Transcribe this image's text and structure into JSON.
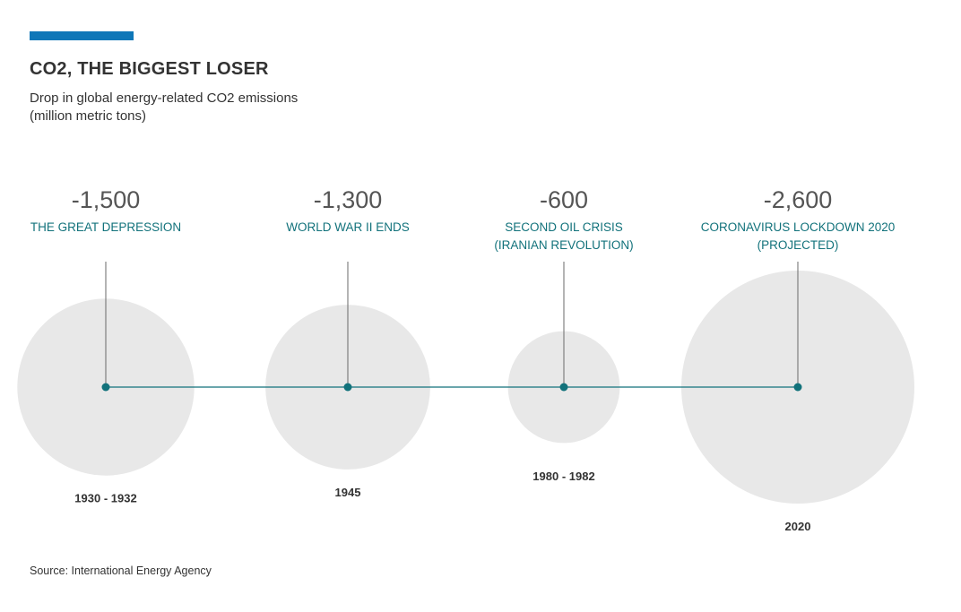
{
  "header": {
    "title": "CO2, THE BIGGEST LOSER",
    "subtitle_line1": "Drop in global energy-related CO2 emissions",
    "subtitle_line2": "(million metric tons)"
  },
  "footer": {
    "source": "Source: International Energy Agency"
  },
  "colors": {
    "accent": "#0f77b8",
    "teal": "#12727b",
    "bubble": "#e8e8e8",
    "stem": "#6a6a6a"
  },
  "chart_data": {
    "type": "bubble-timeline",
    "unit": "million metric tons",
    "points": [
      {
        "value": -1500,
        "value_label": "-1,500",
        "event_lines": [
          "THE GREAT DEPRESSION"
        ],
        "period": "1930 - 1932"
      },
      {
        "value": -1300,
        "value_label": "-1,300",
        "event_lines": [
          "WORLD WAR II ENDS"
        ],
        "period": "1945"
      },
      {
        "value": -600,
        "value_label": "-600",
        "event_lines": [
          "SECOND OIL CRISIS",
          "(IRANIAN REVOLUTION)"
        ],
        "period": "1980 - 1982"
      },
      {
        "value": -2600,
        "value_label": "-2,600",
        "event_lines": [
          "CORONAVIRUS LOCKDOWN 2020",
          "(PROJECTED)"
        ],
        "period": "2020"
      }
    ]
  }
}
